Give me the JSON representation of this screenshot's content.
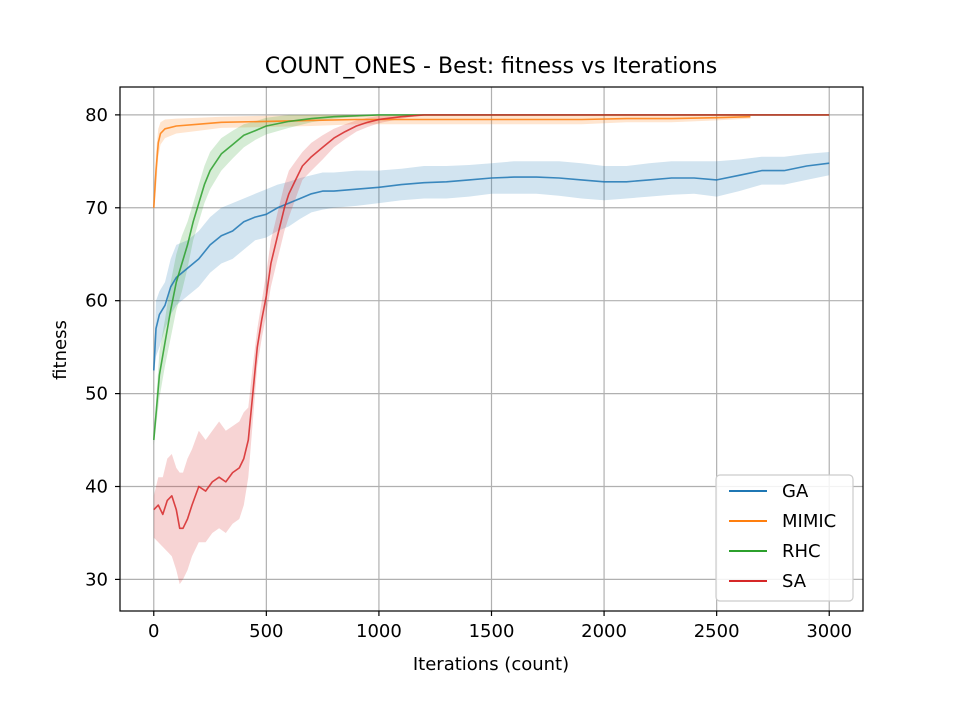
{
  "chart_data": {
    "type": "line",
    "title": "COUNT_ONES - Best: fitness vs Iterations",
    "xlabel": "Iterations (count)",
    "ylabel": "fitness",
    "xlim": [
      -150,
      3150
    ],
    "ylim": [
      26.6,
      83.0
    ],
    "xticks": [
      0,
      500,
      1000,
      1500,
      2000,
      2500,
      3000
    ],
    "yticks": [
      30,
      40,
      50,
      60,
      70,
      80
    ],
    "grid": true,
    "legend_position": "lower-right",
    "series": [
      {
        "name": "GA",
        "color": "#1f77b4",
        "x": [
          0,
          10,
          25,
          50,
          75,
          100,
          150,
          200,
          250,
          300,
          350,
          400,
          450,
          500,
          550,
          600,
          650,
          700,
          750,
          800,
          900,
          1000,
          1100,
          1200,
          1300,
          1400,
          1500,
          1600,
          1700,
          1800,
          1900,
          2000,
          2100,
          2200,
          2300,
          2400,
          2500,
          2600,
          2700,
          2800,
          2900,
          3000
        ],
        "y": [
          52.5,
          57,
          58.5,
          59.5,
          61.5,
          62.5,
          63.5,
          64.5,
          66,
          67,
          67.5,
          68.5,
          69,
          69.3,
          70,
          70.5,
          71,
          71.5,
          71.8,
          71.8,
          72,
          72.2,
          72.5,
          72.7,
          72.8,
          73,
          73.2,
          73.3,
          73.3,
          73.2,
          73,
          72.8,
          72.8,
          73,
          73.2,
          73.2,
          73,
          73.5,
          74,
          74,
          74.5,
          74.8
        ],
        "upper": [
          53,
          60,
          61,
          62,
          64.5,
          66,
          66.5,
          67.5,
          69,
          70,
          70.5,
          71,
          71.5,
          72,
          72.5,
          72.8,
          73.2,
          73.5,
          73.8,
          73.8,
          74,
          74,
          74.2,
          74.5,
          74.5,
          74.6,
          74.8,
          75,
          75,
          75,
          74.8,
          74.5,
          74.5,
          74.8,
          75,
          75,
          75,
          75.2,
          75.5,
          75.5,
          75.8,
          76
        ],
        "lower": [
          52,
          54,
          55,
          57,
          58.5,
          59.5,
          60.5,
          61.5,
          63,
          64,
          64.5,
          65.5,
          66.5,
          66.8,
          67.5,
          68,
          68.8,
          69.5,
          69.8,
          70,
          70.2,
          70.5,
          70.8,
          71,
          71,
          71.2,
          71.5,
          71.5,
          71.5,
          71.3,
          71,
          70.8,
          71,
          71.2,
          71.4,
          71.5,
          71.2,
          71.8,
          72.5,
          72.5,
          73,
          73.5
        ]
      },
      {
        "name": "MIMIC",
        "color": "#ff7f0e",
        "x": [
          0,
          10,
          20,
          30,
          50,
          100,
          200,
          300,
          500,
          700,
          900,
          1100,
          1300,
          1500,
          1700,
          1900,
          2100,
          2300,
          2500,
          2650
        ],
        "y": [
          70,
          74,
          77,
          78,
          78.5,
          78.8,
          79,
          79.2,
          79.3,
          79.4,
          79.5,
          79.5,
          79.5,
          79.5,
          79.5,
          79.5,
          79.6,
          79.6,
          79.7,
          79.8
        ],
        "upper": [
          70.2,
          76,
          78.5,
          79.2,
          79.5,
          79.6,
          79.7,
          79.8,
          79.9,
          80,
          80,
          80,
          80,
          80,
          80,
          80,
          80,
          80,
          80,
          80
        ],
        "lower": [
          69.8,
          72,
          75.5,
          76.8,
          77.5,
          78,
          78.3,
          78.6,
          78.7,
          78.8,
          79,
          79,
          79,
          79,
          79,
          79,
          79.2,
          79.2,
          79.4,
          79.6
        ]
      },
      {
        "name": "RHC",
        "color": "#2ca02c",
        "x": [
          0,
          25,
          50,
          75,
          100,
          125,
          150,
          175,
          200,
          225,
          250,
          300,
          350,
          400,
          450,
          500,
          600,
          700,
          800,
          900,
          1000,
          1100,
          1200,
          1300,
          1400,
          1500,
          2000,
          2500,
          3000
        ],
        "y": [
          45,
          52,
          55.5,
          59,
          62,
          64,
          66,
          68.5,
          70.5,
          72.5,
          74,
          75.8,
          76.8,
          77.8,
          78.3,
          78.8,
          79.3,
          79.6,
          79.8,
          79.9,
          80,
          80,
          80,
          80,
          80,
          80,
          80,
          80,
          80
        ],
        "upper": [
          45.5,
          54.5,
          58,
          62,
          65,
          67,
          68.5,
          70.5,
          72.5,
          74.5,
          76,
          77.5,
          78.3,
          79,
          79.3,
          79.7,
          80,
          80,
          80,
          80,
          80,
          80,
          80,
          80,
          80,
          80,
          80,
          80,
          80
        ],
        "lower": [
          44.5,
          49.5,
          53,
          56,
          59,
          61,
          63.5,
          66.5,
          68.5,
          70.5,
          72,
          74,
          75.3,
          76.5,
          77.3,
          77.9,
          78.6,
          79.2,
          79.6,
          79.8,
          80,
          80,
          80,
          80,
          80,
          80,
          80,
          80,
          80
        ]
      },
      {
        "name": "SA",
        "color": "#d62728",
        "x": [
          0,
          20,
          40,
          60,
          80,
          100,
          115,
          130,
          150,
          170,
          200,
          230,
          260,
          290,
          320,
          350,
          380,
          400,
          420,
          440,
          460,
          480,
          500,
          520,
          550,
          580,
          600,
          630,
          660,
          700,
          750,
          800,
          850,
          900,
          950,
          1000,
          1100,
          1200,
          1300,
          1500,
          2000,
          2500,
          3000
        ],
        "y": [
          37.5,
          38,
          37,
          38.5,
          39,
          37.5,
          35.5,
          35.5,
          36.5,
          38,
          40,
          39.5,
          40.5,
          41,
          40.5,
          41.5,
          42,
          43,
          45,
          50,
          55,
          58,
          60.5,
          64,
          67,
          70,
          71.5,
          73,
          74.5,
          75.5,
          76.5,
          77.5,
          78.2,
          78.8,
          79.2,
          79.5,
          79.8,
          80,
          80,
          80,
          80,
          80,
          80
        ],
        "upper": [
          39,
          41,
          41,
          43,
          43.5,
          42,
          41.5,
          41.5,
          43,
          44,
          46,
          45,
          46,
          47,
          46,
          46.5,
          47,
          48,
          48.5,
          53,
          57,
          60,
          63,
          66.5,
          69.5,
          72.5,
          74,
          75,
          76,
          77,
          77.8,
          78.5,
          79,
          79.4,
          79.7,
          79.9,
          80,
          80,
          80,
          80,
          80,
          80,
          80
        ],
        "lower": [
          34.5,
          34,
          33.5,
          33,
          32.5,
          31,
          29.5,
          30,
          31,
          32.5,
          34,
          34,
          35,
          35.5,
          35,
          36,
          36.5,
          38,
          41,
          47,
          53,
          56,
          58.5,
          61.5,
          64.5,
          67.5,
          69,
          71,
          73,
          74,
          75.2,
          76.5,
          77.4,
          78.2,
          78.7,
          79.1,
          79.6,
          80,
          80,
          80,
          80,
          80,
          80
        ]
      }
    ]
  }
}
